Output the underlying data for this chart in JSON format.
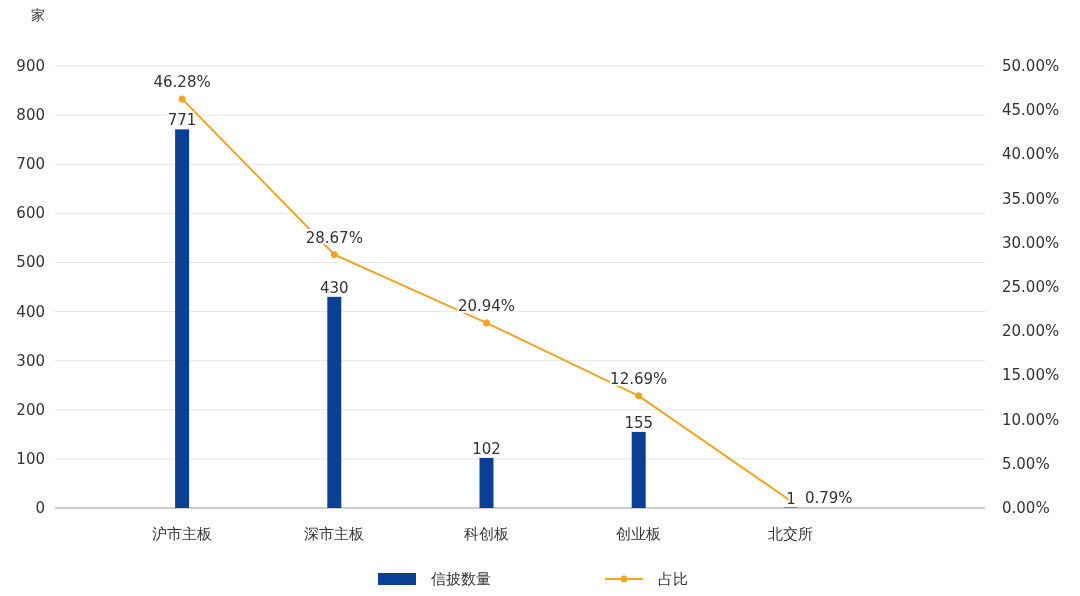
{
  "chart_data": {
    "type": "bar",
    "ylabel": "家",
    "categories": [
      "沪市主板",
      "深市主板",
      "科创板",
      "创业板",
      "北交所"
    ],
    "series": [
      {
        "name": "信披数量",
        "color": "#0b3f94",
        "values": [
          771,
          430,
          102,
          155,
          1
        ]
      },
      {
        "name": "占比",
        "type": "line",
        "axis": "y2",
        "color": "#f0a526",
        "values": [
          46.28,
          28.67,
          20.94,
          12.69,
          0.79
        ],
        "value_labels": [
          "46.28%",
          "28.67%",
          "20.94%",
          "12.69%",
          "0.79%"
        ]
      }
    ],
    "ylim": [
      0,
      900
    ],
    "yticks": [
      0,
      100,
      200,
      300,
      400,
      500,
      600,
      700,
      800,
      900
    ],
    "y2lim": [
      0,
      50
    ],
    "y2ticks": [
      {
        "value": 0,
        "label": "0.00%"
      },
      {
        "value": 5,
        "label": "5.00%"
      },
      {
        "value": 10,
        "label": "10.00%"
      },
      {
        "value": 15,
        "label": "15.00%"
      },
      {
        "value": 20,
        "label": "20.00%"
      },
      {
        "value": 25,
        "label": "25.00%"
      },
      {
        "value": 30,
        "label": "30.00%"
      },
      {
        "value": 35,
        "label": "35.00%"
      },
      {
        "value": 40,
        "label": "40.00%"
      },
      {
        "value": 45,
        "label": "45.00%"
      },
      {
        "value": 50,
        "label": "50.00%"
      }
    ],
    "data_labels": true,
    "grid": "y",
    "legend": "bottom",
    "marker": "circle"
  }
}
